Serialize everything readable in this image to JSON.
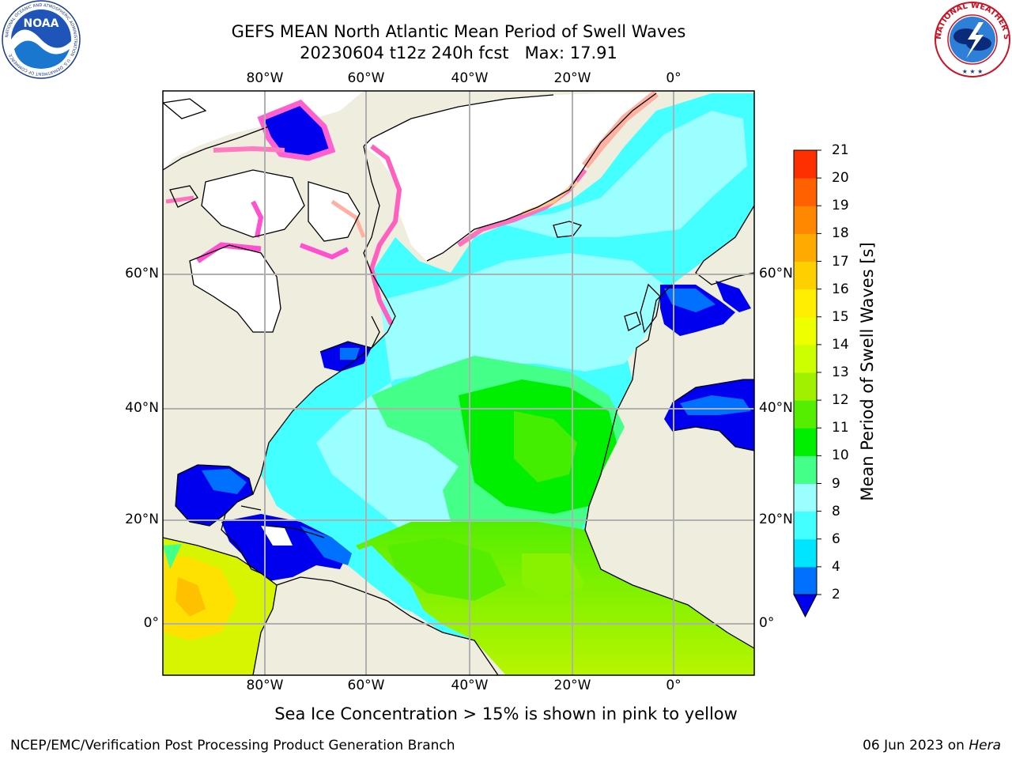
{
  "header": {
    "title_line1": "GEFS MEAN North Atlantic Mean Period of Swell Waves",
    "title_line2": "20230604 t12z 240h fcst   Max: 17.91"
  },
  "logos": {
    "left": "NOAA",
    "left_ring_text": "NATIONAL OCEANIC AND ATMOSPHERIC ADMINISTRATION · U.S. DEPARTMENT OF COMMERCE",
    "right_ring_text": "NATIONAL WEATHER SERVICE"
  },
  "map": {
    "lon_ticks": [
      "80°W",
      "60°W",
      "40°W",
      "20°W",
      "0°"
    ],
    "lat_ticks": [
      "60°N",
      "40°N",
      "20°N",
      "0°"
    ],
    "lon_range": [
      -100,
      16
    ],
    "lat_range": [
      -8,
      78
    ],
    "gridlines": true
  },
  "colorbar": {
    "label": "Mean Period of Swell Waves [s]",
    "ticks": [
      "21",
      "20",
      "19",
      "18",
      "17",
      "16",
      "15",
      "14",
      "13",
      "12",
      "11",
      "10",
      "9",
      "8",
      "6",
      "4",
      "2"
    ],
    "colors": [
      "#0000ee",
      "#0070ff",
      "#00e5ff",
      "#44ffff",
      "#9bffff",
      "#44ff88",
      "#00ee00",
      "#55ee00",
      "#a0f000",
      "#ccff00",
      "#eeff00",
      "#ffee00",
      "#ffd000",
      "#ffaa00",
      "#ff8800",
      "#ff6000",
      "#ff3000",
      "#ff0000"
    ]
  },
  "footer": {
    "ice_note": "Sea Ice Concentration > 15% is shown in pink to yellow",
    "credit_left": "NCEP/EMC/Verification Post Processing Product Generation Branch",
    "credit_right_date": "06 Jun 2023 on ",
    "credit_right_host": "Hera"
  }
}
